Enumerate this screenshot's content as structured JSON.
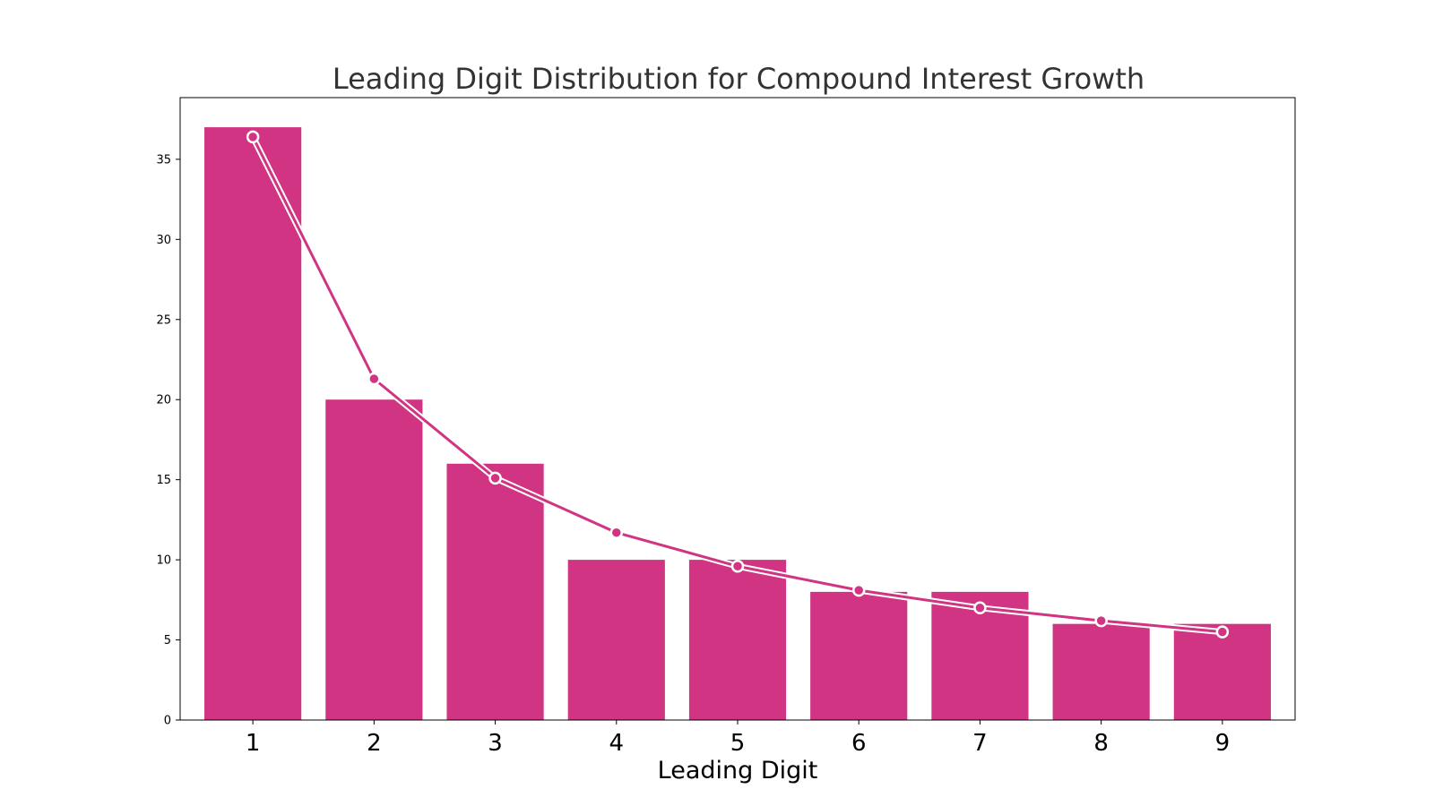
{
  "chart_data": {
    "type": "bar",
    "title": "Leading Digit Distribution for Compound Interest Growth",
    "xlabel": "Leading Digit",
    "ylabel": "",
    "categories": [
      "1",
      "2",
      "3",
      "4",
      "5",
      "6",
      "7",
      "8",
      "9"
    ],
    "values": [
      37,
      20,
      16,
      10,
      10,
      8,
      8,
      6,
      6
    ],
    "overlay_line": {
      "type": "line",
      "values": [
        36.4,
        21.3,
        15.1,
        11.7,
        9.6,
        8.1,
        7.0,
        6.2,
        5.5
      ]
    },
    "yticks": [
      "0",
      "5",
      "10",
      "15",
      "20",
      "25",
      "30",
      "35"
    ],
    "ylim": [
      0,
      38.85
    ],
    "grid": false,
    "legend": "none",
    "colors": {
      "bar": "#d03482",
      "line": "#d03482",
      "marker_edge": "#ffffff"
    }
  }
}
